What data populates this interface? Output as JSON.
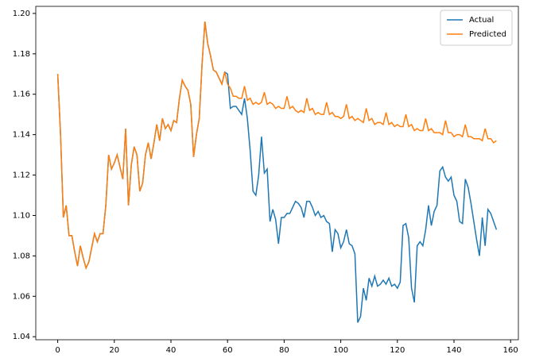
{
  "chart_data": {
    "type": "line",
    "x": [
      0,
      1,
      2,
      3,
      4,
      5,
      6,
      7,
      8,
      9,
      10,
      11,
      12,
      13,
      14,
      15,
      16,
      17,
      18,
      19,
      20,
      21,
      22,
      23,
      24,
      25,
      26,
      27,
      28,
      29,
      30,
      31,
      32,
      33,
      34,
      35,
      36,
      37,
      38,
      39,
      40,
      41,
      42,
      43,
      44,
      45,
      46,
      47,
      48,
      49,
      50,
      51,
      52,
      53,
      54,
      55,
      56,
      57,
      58,
      59,
      60,
      61,
      62,
      63,
      64,
      65,
      66,
      67,
      68,
      69,
      70,
      71,
      72,
      73,
      74,
      75,
      76,
      77,
      78,
      79,
      80,
      81,
      82,
      83,
      84,
      85,
      86,
      87,
      88,
      89,
      90,
      91,
      92,
      93,
      94,
      95,
      96,
      97,
      98,
      99,
      100,
      101,
      102,
      103,
      104,
      105,
      106,
      107,
      108,
      109,
      110,
      111,
      112,
      113,
      114,
      115,
      116,
      117,
      118,
      119,
      120,
      121,
      122,
      123,
      124,
      125,
      126,
      127,
      128,
      129,
      130,
      131,
      132,
      133,
      134,
      135,
      136,
      137,
      138,
      139,
      140,
      141,
      142,
      143,
      144,
      145,
      146,
      147,
      148,
      149,
      150,
      151,
      152,
      153,
      154,
      155
    ],
    "series": [
      {
        "name": "Actual",
        "color": "#1f77b4",
        "values": [
          1.17,
          1.14,
          1.099,
          1.105,
          1.09,
          1.09,
          1.082,
          1.075,
          1.085,
          1.079,
          1.074,
          1.077,
          1.084,
          1.091,
          1.087,
          1.091,
          1.091,
          1.105,
          1.13,
          1.123,
          1.126,
          1.13,
          1.124,
          1.118,
          1.143,
          1.105,
          1.125,
          1.134,
          1.13,
          1.112,
          1.116,
          1.13,
          1.136,
          1.128,
          1.136,
          1.145,
          1.137,
          1.148,
          1.143,
          1.145,
          1.142,
          1.147,
          1.146,
          1.158,
          1.167,
          1.164,
          1.162,
          1.155,
          1.129,
          1.14,
          1.148,
          1.175,
          1.196,
          1.185,
          1.179,
          1.172,
          1.171,
          1.168,
          1.165,
          1.171,
          1.17,
          1.153,
          1.154,
          1.154,
          1.152,
          1.15,
          1.158,
          1.148,
          1.132,
          1.112,
          1.11,
          1.12,
          1.139,
          1.121,
          1.123,
          1.097,
          1.103,
          1.098,
          1.086,
          1.099,
          1.099,
          1.101,
          1.101,
          1.104,
          1.107,
          1.106,
          1.104,
          1.099,
          1.107,
          1.107,
          1.104,
          1.1,
          1.102,
          1.099,
          1.1,
          1.097,
          1.096,
          1.082,
          1.093,
          1.091,
          1.084,
          1.087,
          1.093,
          1.086,
          1.085,
          1.081,
          1.047,
          1.05,
          1.064,
          1.058,
          1.069,
          1.065,
          1.07,
          1.065,
          1.066,
          1.068,
          1.066,
          1.069,
          1.065,
          1.066,
          1.064,
          1.067,
          1.095,
          1.096,
          1.089,
          1.064,
          1.057,
          1.085,
          1.087,
          1.085,
          1.093,
          1.105,
          1.095,
          1.102,
          1.105,
          1.122,
          1.124,
          1.119,
          1.117,
          1.119,
          1.11,
          1.107,
          1.097,
          1.096,
          1.118,
          1.114,
          1.106,
          1.097,
          1.088,
          1.08,
          1.099,
          1.085,
          1.103,
          1.101,
          1.097,
          1.093
        ]
      },
      {
        "name": "Predicted",
        "color": "#ff7f0e",
        "values": [
          1.17,
          1.14,
          1.099,
          1.105,
          1.09,
          1.09,
          1.082,
          1.075,
          1.085,
          1.079,
          1.074,
          1.077,
          1.084,
          1.091,
          1.087,
          1.091,
          1.091,
          1.105,
          1.13,
          1.123,
          1.126,
          1.13,
          1.124,
          1.118,
          1.143,
          1.105,
          1.125,
          1.134,
          1.13,
          1.112,
          1.116,
          1.13,
          1.136,
          1.128,
          1.136,
          1.145,
          1.137,
          1.148,
          1.143,
          1.145,
          1.142,
          1.147,
          1.146,
          1.158,
          1.167,
          1.164,
          1.162,
          1.155,
          1.129,
          1.14,
          1.148,
          1.175,
          1.196,
          1.185,
          1.179,
          1.172,
          1.171,
          1.168,
          1.165,
          1.171,
          1.165,
          1.163,
          1.159,
          1.159,
          1.158,
          1.158,
          1.164,
          1.157,
          1.158,
          1.155,
          1.156,
          1.155,
          1.156,
          1.161,
          1.155,
          1.156,
          1.155,
          1.153,
          1.154,
          1.153,
          1.153,
          1.159,
          1.153,
          1.154,
          1.152,
          1.151,
          1.152,
          1.151,
          1.158,
          1.152,
          1.153,
          1.15,
          1.151,
          1.15,
          1.15,
          1.156,
          1.15,
          1.151,
          1.149,
          1.149,
          1.148,
          1.149,
          1.155,
          1.148,
          1.149,
          1.147,
          1.148,
          1.147,
          1.146,
          1.153,
          1.147,
          1.148,
          1.145,
          1.146,
          1.146,
          1.145,
          1.151,
          1.145,
          1.146,
          1.144,
          1.145,
          1.144,
          1.144,
          1.15,
          1.144,
          1.145,
          1.142,
          1.143,
          1.142,
          1.142,
          1.148,
          1.142,
          1.143,
          1.141,
          1.141,
          1.141,
          1.14,
          1.147,
          1.141,
          1.141,
          1.139,
          1.14,
          1.14,
          1.139,
          1.145,
          1.139,
          1.139,
          1.138,
          1.138,
          1.138,
          1.137,
          1.143,
          1.138,
          1.138,
          1.136,
          1.137
        ]
      }
    ],
    "xlim": [
      -7.75,
      162.75
    ],
    "xticks": [
      0,
      20,
      40,
      60,
      80,
      100,
      120,
      140,
      160
    ],
    "ylim": [
      1.0385,
      1.2035
    ],
    "yticks": [
      1.04,
      1.06,
      1.08,
      {
        "value": 1.1,
        "label": "1.10"
      },
      1.12,
      1.14,
      1.16,
      1.18,
      {
        "value": 1.2,
        "label": "1.20"
      }
    ],
    "legend": "upper right",
    "grid": false
  }
}
